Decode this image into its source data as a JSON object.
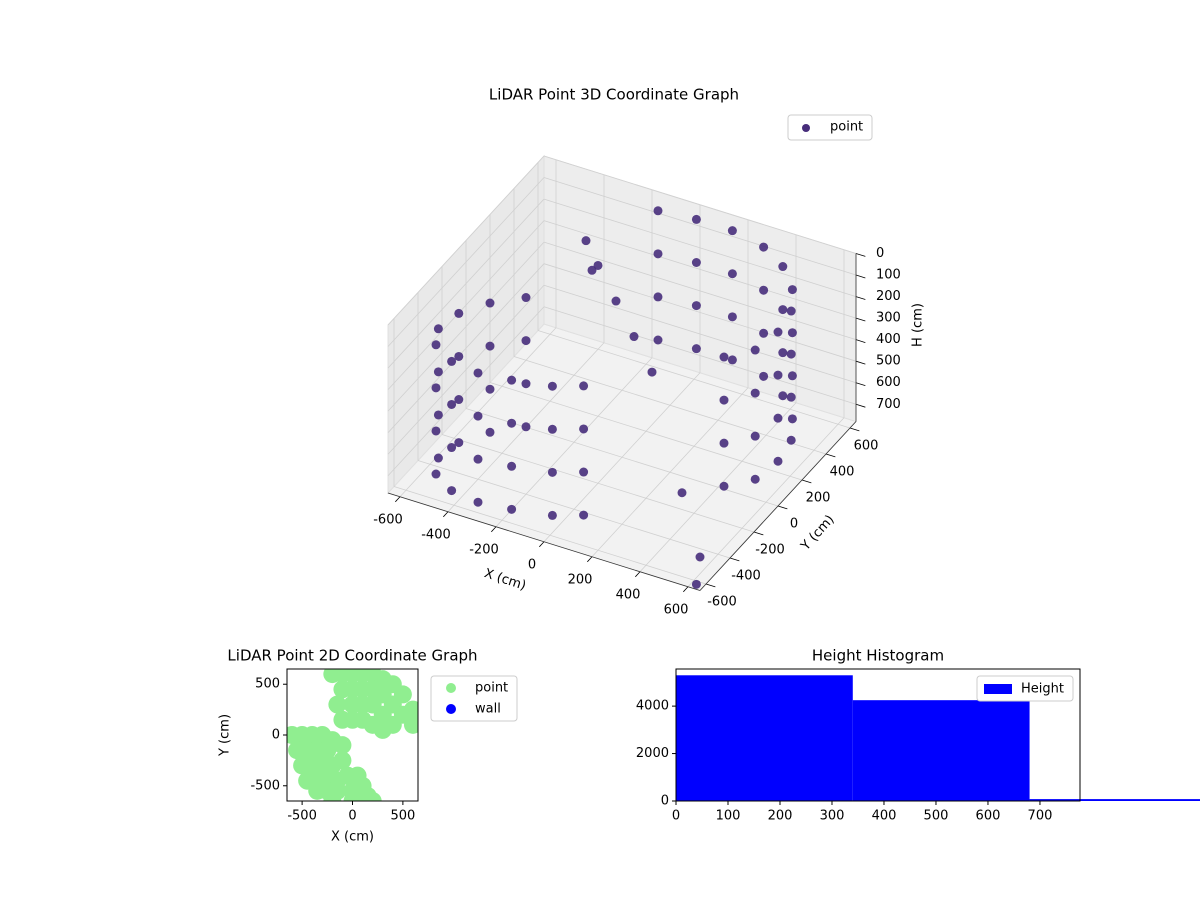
{
  "chart_data": [
    {
      "type": "scatter3d",
      "title": "LiDAR Point 3D Coordinate Graph",
      "xlabel": "X (cm)",
      "ylabel": "Y (cm)",
      "zlabel": "H (cm)",
      "xlim": [
        -650,
        650
      ],
      "ylim": [
        -650,
        650
      ],
      "zlim": [
        780,
        0
      ],
      "xticks": [
        -600,
        -400,
        -200,
        0,
        200,
        400,
        600
      ],
      "yticks": [
        -600,
        -400,
        -200,
        0,
        200,
        400,
        600
      ],
      "zticks": [
        0,
        100,
        200,
        300,
        400,
        500,
        600,
        700
      ],
      "legend": "upper right",
      "series": [
        {
          "name": "point",
          "color": "#472d7b",
          "x": [
            -150,
            -150,
            -150,
            -150,
            0,
            0,
            0,
            0,
            150,
            150,
            150,
            150,
            300,
            300,
            300,
            300,
            420,
            420,
            420,
            420,
            520,
            520,
            520,
            520,
            580,
            580,
            580,
            580,
            600,
            600,
            600,
            600,
            580,
            580,
            580,
            580,
            500,
            500,
            500,
            500,
            -350,
            -350,
            -350,
            -350,
            -450,
            -450,
            -450,
            -450,
            -520,
            -520,
            -520,
            -520,
            -540,
            -540,
            -540,
            -540,
            -500,
            -500,
            -500,
            -500,
            -400,
            -400,
            -400,
            -400,
            -280,
            -280,
            -280,
            -280,
            -150,
            -150,
            -150,
            -150,
            0,
            0,
            0,
            0,
            100,
            100,
            100,
            100,
            -200,
            -100,
            0,
            100,
            -300,
            -250,
            300,
            550,
            620
          ],
          "y": [
            600,
            600,
            600,
            600,
            620,
            620,
            620,
            620,
            620,
            620,
            620,
            620,
            580,
            580,
            580,
            580,
            500,
            500,
            500,
            500,
            380,
            380,
            380,
            380,
            250,
            250,
            250,
            250,
            100,
            100,
            100,
            100,
            -50,
            -50,
            -50,
            -50,
            -150,
            -150,
            -150,
            -150,
            -100,
            -100,
            -100,
            -100,
            -200,
            -200,
            -200,
            -200,
            -320,
            -320,
            -320,
            -320,
            -450,
            -450,
            -450,
            -450,
            -550,
            -550,
            -550,
            -550,
            -620,
            -620,
            -620,
            -620,
            -640,
            -640,
            -640,
            -640,
            -620,
            -620,
            -620,
            -620,
            -580,
            -580,
            -580,
            -580,
            -520,
            -520,
            -520,
            -520,
            200,
            150,
            100,
            50,
            300,
            250,
            -100,
            -450,
            -620
          ],
          "z": [
            50,
            250,
            450,
            650,
            50,
            250,
            450,
            650,
            50,
            250,
            450,
            650,
            50,
            250,
            450,
            650,
            50,
            250,
            450,
            650,
            50,
            250,
            450,
            650,
            50,
            250,
            450,
            650,
            50,
            250,
            450,
            650,
            50,
            250,
            450,
            650,
            50,
            250,
            450,
            650,
            100,
            300,
            500,
            700,
            100,
            300,
            500,
            700,
            100,
            300,
            500,
            700,
            100,
            300,
            500,
            700,
            100,
            300,
            500,
            700,
            100,
            300,
            500,
            700,
            100,
            300,
            500,
            700,
            100,
            300,
            500,
            700,
            100,
            300,
            500,
            700,
            100,
            300,
            500,
            700,
            80,
            180,
            280,
            380,
            60,
            150,
            780,
            780,
            780
          ]
        }
      ]
    },
    {
      "type": "scatter",
      "title": "LiDAR Point 2D Coordinate Graph",
      "xlabel": "X (cm)",
      "ylabel": "Y (cm)",
      "xlim": [
        -650,
        650
      ],
      "ylim": [
        -650,
        650
      ],
      "xticks": [
        -500,
        0,
        500
      ],
      "yticks": [
        -500,
        0,
        500
      ],
      "legend": "outside right",
      "series": [
        {
          "name": "point",
          "color": "#90ee90",
          "x": [
            -200,
            -100,
            0,
            100,
            200,
            300,
            400,
            500,
            600,
            600,
            -100,
            0,
            100,
            200,
            300,
            400,
            500,
            -150,
            0,
            100,
            200,
            300,
            400,
            -100,
            0,
            100,
            200,
            300,
            -600,
            -500,
            -400,
            -300,
            -200,
            -550,
            -450,
            -350,
            -250,
            -100,
            -500,
            -400,
            -300,
            -200,
            -100,
            -450,
            -350,
            -250,
            -150,
            -50,
            50,
            -350,
            -250,
            -150,
            0,
            100,
            -200,
            0,
            150,
            200
          ],
          "y": [
            600,
            600,
            600,
            600,
            600,
            550,
            500,
            400,
            250,
            100,
            450,
            450,
            450,
            450,
            400,
            300,
            200,
            300,
            300,
            300,
            300,
            200,
            100,
            150,
            150,
            150,
            100,
            50,
            0,
            0,
            0,
            0,
            -50,
            -150,
            -150,
            -150,
            -150,
            -100,
            -300,
            -300,
            -300,
            -300,
            -250,
            -450,
            -450,
            -450,
            -450,
            -400,
            -400,
            -550,
            -550,
            -550,
            -550,
            -500,
            -650,
            -650,
            -600,
            -650
          ]
        },
        {
          "name": "wall",
          "color": "#0000ff",
          "x": [],
          "y": []
        }
      ]
    },
    {
      "type": "histogram",
      "title": "Height Histogram",
      "name": "Height",
      "color": "#0000ff",
      "bins": [
        0,
        340,
        680,
        1020
      ],
      "counts": [
        5300,
        4250,
        80
      ],
      "xlim": [
        0,
        777
      ],
      "ylim": [
        0,
        5565
      ],
      "xticks": [
        0,
        100,
        200,
        300,
        400,
        500,
        600,
        700
      ],
      "yticks": [
        0,
        2000,
        4000
      ],
      "legend": "upper right"
    }
  ]
}
